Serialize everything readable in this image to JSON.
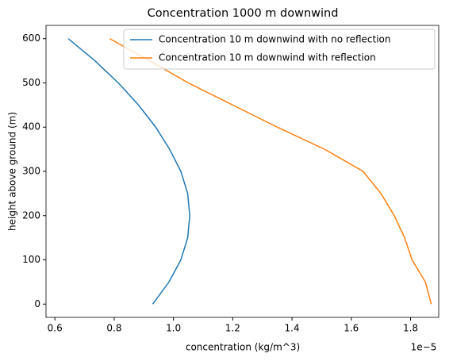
{
  "chart_data": {
    "type": "line",
    "title": "Concentration 1000 m downwind",
    "x_label": "concentration (kg/m^3)",
    "y_label": "height above ground (m)",
    "x_offset_label": "1e−5",
    "xlim": [
      0.57,
      1.895
    ],
    "ylim": [
      -30,
      630
    ],
    "xticks": [
      0.6,
      0.8,
      {
        "value": 1,
        "label": "1.0"
      },
      1.2,
      1.4,
      1.6,
      1.8
    ],
    "yticks": [
      0,
      100,
      200,
      300,
      400,
      500,
      600
    ],
    "legend": "upper right",
    "grid": false,
    "series": [
      {
        "name": "Concentration 10 m downwind with no reflection",
        "color": "#1f77b4",
        "y": [
          0,
          50,
          100,
          150,
          200,
          250,
          300,
          350,
          400,
          450,
          500,
          550,
          600
        ],
        "x": [
          0.93,
          0.985,
          1.025,
          1.048,
          1.055,
          1.048,
          1.025,
          0.987,
          0.94,
          0.882,
          0.814,
          0.735,
          0.645
        ]
      },
      {
        "name": "Concentration 10 m downwind with reflection",
        "color": "#ff7f0e",
        "y": [
          0,
          50,
          100,
          150,
          200,
          250,
          300,
          350,
          400,
          450,
          500,
          550,
          600
        ],
        "x": [
          1.87,
          1.85,
          1.805,
          1.78,
          1.745,
          1.7,
          1.64,
          1.51,
          1.35,
          1.2,
          1.05,
          0.92,
          0.785
        ]
      }
    ]
  }
}
